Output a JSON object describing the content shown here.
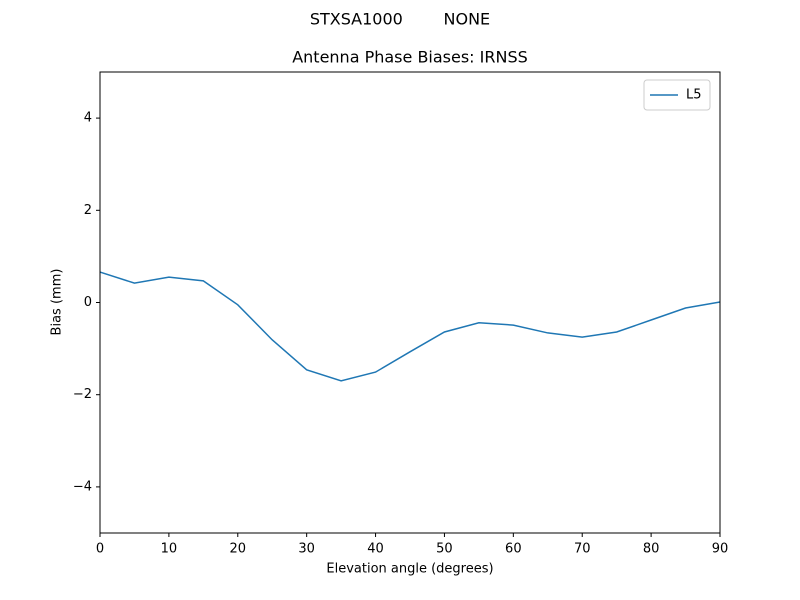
{
  "chart_data": {
    "type": "line",
    "suptitle": "STXSA1000        NONE",
    "title": "Antenna Phase Biases: IRNSS",
    "xlabel": "Elevation angle (degrees)",
    "ylabel": "Bias (mm)",
    "x": [
      0,
      5,
      10,
      15,
      20,
      25,
      30,
      35,
      40,
      45,
      50,
      55,
      60,
      65,
      70,
      75,
      80,
      85,
      90
    ],
    "series": [
      {
        "name": "L5",
        "color": "#1f77b4",
        "values": [
          0.66,
          0.42,
          0.55,
          0.47,
          -0.05,
          -0.81,
          -1.46,
          -1.7,
          -1.51,
          -1.07,
          -0.64,
          -0.44,
          -0.49,
          -0.66,
          -0.75,
          -0.64,
          -0.38,
          -0.12,
          0.01
        ]
      }
    ],
    "xlim": [
      0,
      90
    ],
    "xticks": [
      0,
      10,
      20,
      30,
      40,
      50,
      60,
      70,
      80,
      90
    ],
    "ylim": [
      -5,
      5
    ],
    "yticks": [
      {
        "value": -4,
        "label": "−4"
      },
      {
        "value": -2,
        "label": "−2"
      },
      0,
      2,
      4
    ],
    "grid": false,
    "legend": "upper right"
  }
}
